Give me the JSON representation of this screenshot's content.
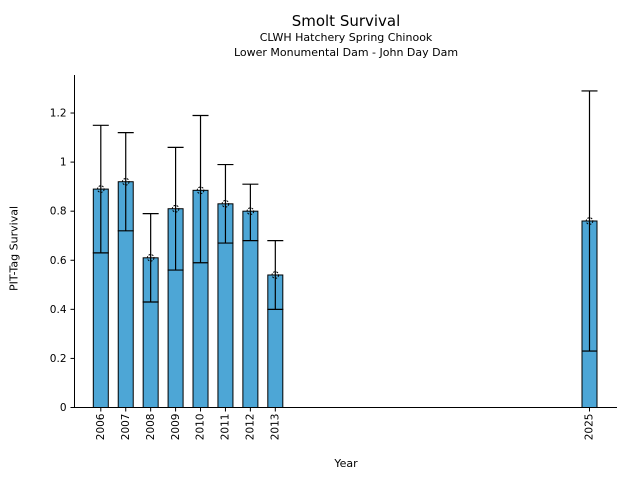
{
  "chart_data": {
    "type": "bar",
    "title": "Smolt Survival",
    "subtitle1": "CLWH Hatchery Spring Chinook",
    "subtitle2": "Lower Monumental Dam - John Day Dam",
    "xlabel": "Year",
    "ylabel": "PIT-Tag Survival",
    "x": [
      2006,
      2007,
      2008,
      2009,
      2010,
      2011,
      2012,
      2013,
      2025
    ],
    "values": [
      0.89,
      0.92,
      0.61,
      0.81,
      0.885,
      0.83,
      0.8,
      0.54,
      0.76
    ],
    "err_low": [
      0.63,
      0.72,
      0.43,
      0.56,
      0.59,
      0.67,
      0.68,
      0.4,
      0.23
    ],
    "err_high": [
      1.15,
      1.12,
      0.79,
      1.06,
      1.19,
      0.99,
      0.91,
      0.68,
      1.29
    ],
    "yticks": [
      0,
      0.2,
      0.4,
      0.6,
      0.8,
      1,
      1.2
    ],
    "ytick_labels": [
      "0",
      "0.2",
      "0.4",
      "0.6",
      "0.8",
      "1",
      "1.2"
    ],
    "ylim": [
      0,
      1.36
    ],
    "legend": "none",
    "grid": false,
    "marker": "circle-plus",
    "bar_color": "#4da6d6",
    "edge_color": "#000000",
    "background_color": "#ffffff"
  }
}
